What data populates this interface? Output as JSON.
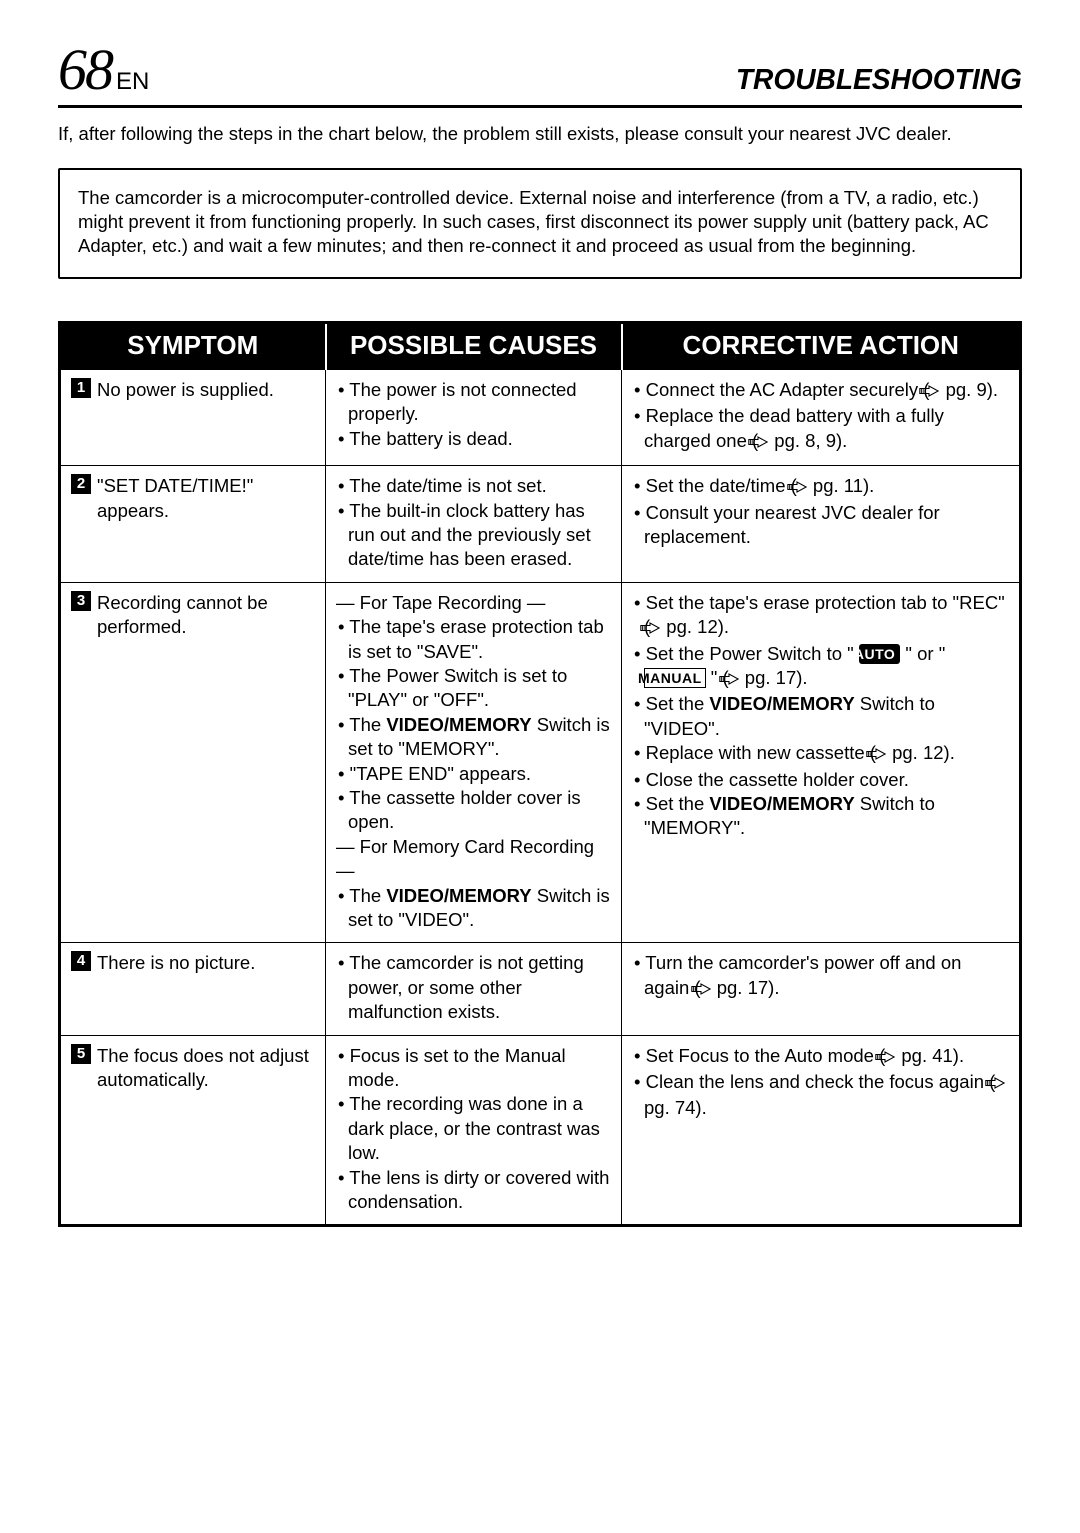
{
  "header": {
    "page_number": "68",
    "lang": "EN",
    "section_title": "TROUBLESHOOTING"
  },
  "intro_text": "If, after following the steps in the chart below, the problem still exists, please consult your nearest JVC dealer.",
  "note_text": "The camcorder is a microcomputer-controlled device. External noise and interference (from a TV, a radio, etc.) might prevent it from functioning properly. In such cases, first disconnect its power supply unit (battery pack, AC Adapter, etc.) and wait a few minutes; and then re-connect it and proceed as usual from the beginning.",
  "table": {
    "headers": {
      "symptom": "Symptom",
      "causes": "Possible Causes",
      "action": "Corrective Action"
    },
    "rows": [
      {
        "num": "1",
        "symptom": "No power is supplied.",
        "causes_html": "<p class='bullet-line'>The power is not connected properly.</p><p class='bullet-line'>The battery is dead.</p>",
        "action_html": "<p class='bullet-line'>Connect the AC Adapter securely (<span class='pg-icon'><svg viewBox='0 0 24 14'><path d='M1 4 L12 4 L12 1 L23 7 L12 13 L12 10 L1 10 Z' fill='none' stroke='#000' stroke-width='1.3'/><line x1='3' y1='4' x2='3' y2='10' stroke='#000'/><line x1='5' y1='4' x2='5' y2='10' stroke='#000'/></svg></span> pg. 9).</p><p class='bullet-line'>Replace the dead battery with a fully charged one (<span class='pg-icon'><svg viewBox='0 0 24 14'><path d='M1 4 L12 4 L12 1 L23 7 L12 13 L12 10 L1 10 Z' fill='none' stroke='#000' stroke-width='1.3'/><line x1='3' y1='4' x2='3' y2='10' stroke='#000'/><line x1='5' y1='4' x2='5' y2='10' stroke='#000'/></svg></span> pg. 8, 9).</p>"
      },
      {
        "num": "2",
        "symptom": "\"SET DATE/TIME!\" appears.",
        "causes_html": "<p class='bullet-line'>The date/time is not set.</p><p class='bullet-line'>The built-in clock battery has run out and the previously set date/time has been erased.</p>",
        "action_html": "<p class='bullet-line'>Set the date/time (<span class='pg-icon'><svg viewBox='0 0 24 14'><path d='M1 4 L12 4 L12 1 L23 7 L12 13 L12 10 L1 10 Z' fill='none' stroke='#000' stroke-width='1.3'/><line x1='3' y1='4' x2='3' y2='10' stroke='#000'/><line x1='5' y1='4' x2='5' y2='10' stroke='#000'/></svg></span> pg. 11).</p><p class='bullet-line'>Consult your nearest JVC dealer for replacement.</p>"
      },
      {
        "num": "3",
        "symptom": "Recording cannot be performed.",
        "causes_html": "<p class='dash-line'>— For Tape Recording —</p><p class='bullet-line'>The tape's erase protection tab is set to \"SAVE\".</p><p class='bullet-line'>The Power Switch is set to \"PLAY\" or \"OFF\".</p><p class='bullet-line'>The <b>VIDEO/MEMORY</b> Switch is set to \"MEMORY\".</p><p class='bullet-line'>\"TAPE END\" appears.</p><p class='bullet-line'>The cassette holder cover is open.</p><p class='dash-line'>— For Memory Card Recording —</p><p class='bullet-line'>The <b>VIDEO/MEMORY</b> Switch is set to \"VIDEO\".</p>",
        "action_html": "<p class='bullet-line'>Set the tape's erase protection tab to \"REC\" (<span class='pg-icon'><svg viewBox='0 0 24 14'><path d='M1 4 L12 4 L12 1 L23 7 L12 13 L12 10 L1 10 Z' fill='none' stroke='#000' stroke-width='1.3'/><line x1='3' y1='4' x2='3' y2='10' stroke='#000'/><line x1='5' y1='4' x2='5' y2='10' stroke='#000'/></svg></span> pg. 12).</p><p class='bullet-line'>Set the Power Switch to \" <span class='badge-auto'>AUTO</span> \" or \" <span class='badge-manual'>MANUAL</span> \" (<span class='pg-icon'><svg viewBox='0 0 24 14'><path d='M1 4 L12 4 L12 1 L23 7 L12 13 L12 10 L1 10 Z' fill='none' stroke='#000' stroke-width='1.3'/><line x1='3' y1='4' x2='3' y2='10' stroke='#000'/><line x1='5' y1='4' x2='5' y2='10' stroke='#000'/></svg></span> pg. 17).</p><p class='bullet-line'>Set the <b>VIDEO/MEMORY</b> Switch to \"VIDEO\".</p><p class='bullet-line'>Replace with new cassette (<span class='pg-icon'><svg viewBox='0 0 24 14'><path d='M1 4 L12 4 L12 1 L23 7 L12 13 L12 10 L1 10 Z' fill='none' stroke='#000' stroke-width='1.3'/><line x1='3' y1='4' x2='3' y2='10' stroke='#000'/><line x1='5' y1='4' x2='5' y2='10' stroke='#000'/></svg></span> pg. 12).</p><p class='bullet-line'>Close the cassette holder cover.</p><p class='bullet-line'>Set the <b>VIDEO/MEMORY</b> Switch to \"MEMORY\".</p>"
      },
      {
        "num": "4",
        "symptom": "There is no picture.",
        "causes_html": "<p class='bullet-line'>The camcorder is not getting power, or some other malfunction exists.</p>",
        "action_html": "<p class='bullet-line'>Turn the camcorder's power off and on again (<span class='pg-icon'><svg viewBox='0 0 24 14'><path d='M1 4 L12 4 L12 1 L23 7 L12 13 L12 10 L1 10 Z' fill='none' stroke='#000' stroke-width='1.3'/><line x1='3' y1='4' x2='3' y2='10' stroke='#000'/><line x1='5' y1='4' x2='5' y2='10' stroke='#000'/></svg></span> pg. 17).</p>"
      },
      {
        "num": "5",
        "symptom": "The focus does not adjust automatically.",
        "causes_html": "<p class='bullet-line'>Focus is set to the Manual mode.</p><p class='bullet-line'>The recording was done in a dark place, or the contrast was low.</p><p class='bullet-line'>The lens is dirty or covered with condensation.</p>",
        "action_html": "<p class='bullet-line'>Set Focus to the Auto mode (<span class='pg-icon'><svg viewBox='0 0 24 14'><path d='M1 4 L12 4 L12 1 L23 7 L12 13 L12 10 L1 10 Z' fill='none' stroke='#000' stroke-width='1.3'/><line x1='3' y1='4' x2='3' y2='10' stroke='#000'/><line x1='5' y1='4' x2='5' y2='10' stroke='#000'/></svg></span> pg. 41).</p><p class='bullet-line'>Clean the lens and check the focus again (<span class='pg-icon'><svg viewBox='0 0 24 14'><path d='M1 4 L12 4 L12 1 L23 7 L12 13 L12 10 L1 10 Z' fill='none' stroke='#000' stroke-width='1.3'/><line x1='3' y1='4' x2='3' y2='10' stroke='#000'/><line x1='5' y1='4' x2='5' y2='10' stroke='#000'/></svg></span> pg. 74).</p>"
      }
    ]
  }
}
